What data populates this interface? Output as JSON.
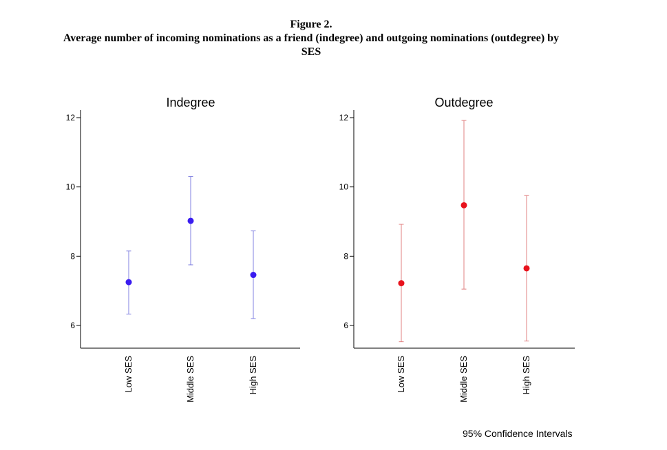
{
  "figure": {
    "number": "Figure 2.",
    "title_line1": "Average number of incoming nominations as a friend (indegree) and outgoing nominations (outdegree) by",
    "title_line2": "SES",
    "note": "95% Confidence Intervals"
  },
  "chart_data": [
    {
      "type": "scatter",
      "title": "Indegree",
      "categories": [
        "Low SES",
        "Middle SES",
        "High SES"
      ],
      "values": [
        7.25,
        9.02,
        7.46
      ],
      "ci_low": [
        6.33,
        7.75,
        6.2
      ],
      "ci_high": [
        8.15,
        10.3,
        8.73
      ],
      "ylim": [
        5.35,
        12.2
      ],
      "yticks": [
        6,
        8,
        10,
        12
      ],
      "color": "#3a1cf0",
      "error_bar_color": "#8080e0",
      "xlabel": "",
      "ylabel": ""
    },
    {
      "type": "scatter",
      "title": "Outdegree",
      "categories": [
        "Low SES",
        "Middle SES",
        "High SES"
      ],
      "values": [
        7.22,
        9.47,
        7.65
      ],
      "ci_low": [
        5.53,
        7.05,
        5.55
      ],
      "ci_high": [
        8.92,
        11.92,
        9.75
      ],
      "ylim": [
        5.35,
        12.2
      ],
      "yticks": [
        6,
        8,
        10,
        12
      ],
      "color": "#e8121c",
      "error_bar_color": "#e08080",
      "xlabel": "",
      "ylabel": ""
    }
  ]
}
